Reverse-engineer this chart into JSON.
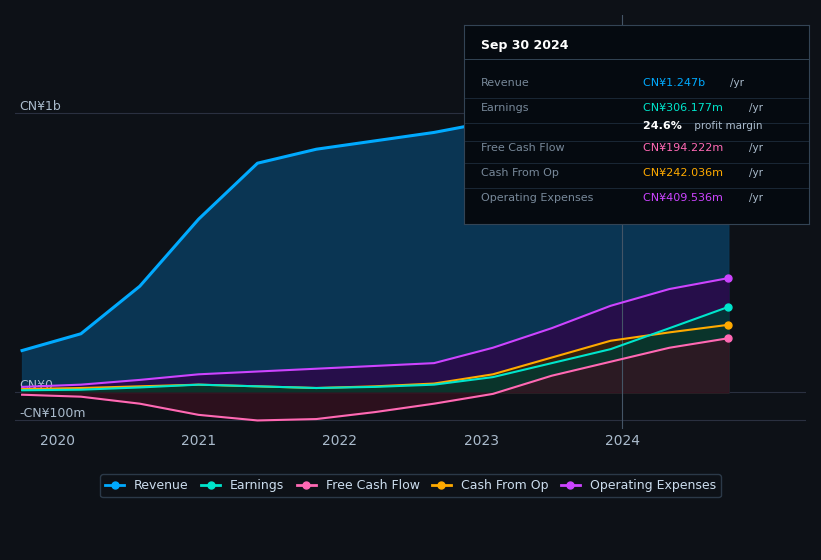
{
  "background_color": "#0d1117",
  "plot_bg_color": "#0d1117",
  "ylabel_top": "CN¥1b",
  "ylabel_bottom": "-CN¥100m",
  "ylabel_zero": "CN¥0",
  "x_ticks": [
    2020,
    2021,
    2022,
    2023,
    2024
  ],
  "x_range": [
    2019.7,
    2025.3
  ],
  "y_range": [
    -130000000.0,
    1350000000.0
  ],
  "gridline_color": "#2a3040",
  "series": {
    "revenue": {
      "color": "#00aaff",
      "fill_color": "#0a3a5a",
      "label": "Revenue",
      "values": [
        150000000.0,
        210000000.0,
        380000000.0,
        620000000.0,
        820000000.0,
        870000000.0,
        900000000.0,
        930000000.0,
        970000000.0,
        1020000000.0,
        1070000000.0,
        1130000000.0,
        1247000000.0
      ]
    },
    "earnings": {
      "color": "#00e5cc",
      "fill_color": "#003a33",
      "label": "Earnings",
      "values": [
        8000000.0,
        10000000.0,
        18000000.0,
        28000000.0,
        22000000.0,
        16000000.0,
        20000000.0,
        28000000.0,
        55000000.0,
        105000000.0,
        155000000.0,
        230000000.0,
        306000000.0
      ]
    },
    "free_cash_flow": {
      "color": "#ff69b4",
      "fill_color": "#3a1020",
      "label": "Free Cash Flow",
      "values": [
        -8000000.0,
        -15000000.0,
        -40000000.0,
        -80000000.0,
        -100000000.0,
        -95000000.0,
        -70000000.0,
        -40000000.0,
        -5000000.0,
        60000000.0,
        110000000.0,
        160000000.0,
        194000000.0
      ]
    },
    "cash_from_op": {
      "color": "#ffaa00",
      "fill_color": "#3a2a00",
      "label": "Cash From Op",
      "values": [
        12000000.0,
        16000000.0,
        22000000.0,
        28000000.0,
        22000000.0,
        16000000.0,
        22000000.0,
        32000000.0,
        65000000.0,
        125000000.0,
        185000000.0,
        215000000.0,
        242000000.0
      ]
    },
    "operating_expenses": {
      "color": "#cc44ff",
      "fill_color": "#2a0a4a",
      "label": "Operating Expenses",
      "values": [
        20000000.0,
        28000000.0,
        45000000.0,
        65000000.0,
        75000000.0,
        85000000.0,
        95000000.0,
        105000000.0,
        160000000.0,
        230000000.0,
        310000000.0,
        370000000.0,
        409000000.0
      ]
    }
  },
  "tooltip_box": {
    "title": "Sep 30 2024",
    "rows": [
      {
        "label": "Revenue",
        "value": "CN¥1.247b",
        "unit": "/yr",
        "color": "#00aaff"
      },
      {
        "label": "Earnings",
        "value": "CN¥306.177m",
        "unit": "/yr",
        "color": "#00e5cc"
      },
      {
        "label": "",
        "value": "24.6%",
        "unit": " profit margin",
        "color": "#ffffff",
        "bold": true
      },
      {
        "label": "Free Cash Flow",
        "value": "CN¥194.222m",
        "unit": "/yr",
        "color": "#ff69b4"
      },
      {
        "label": "Cash From Op",
        "value": "CN¥242.036m",
        "unit": "/yr",
        "color": "#ffaa00"
      },
      {
        "label": "Operating Expenses",
        "value": "CN¥409.536m",
        "unit": "/yr",
        "color": "#cc44ff"
      }
    ]
  },
  "vertical_line_x": 2024.0,
  "legend": [
    {
      "label": "Revenue",
      "color": "#00aaff"
    },
    {
      "label": "Earnings",
      "color": "#00e5cc"
    },
    {
      "label": "Free Cash Flow",
      "color": "#ff69b4"
    },
    {
      "label": "Cash From Op",
      "color": "#ffaa00"
    },
    {
      "label": "Operating Expenses",
      "color": "#cc44ff"
    }
  ]
}
